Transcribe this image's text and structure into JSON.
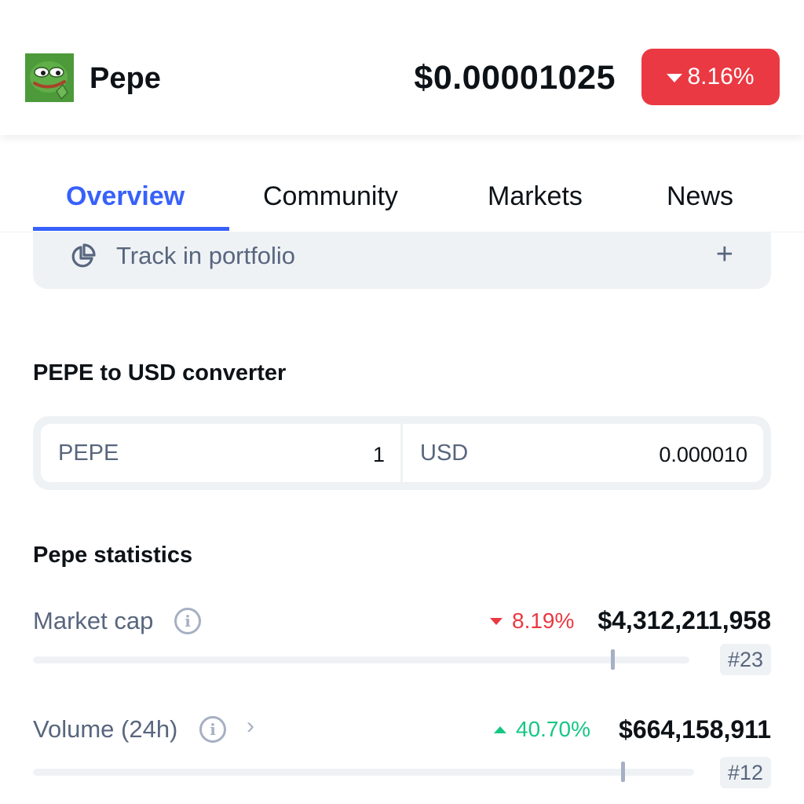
{
  "header": {
    "coin_name": "Pepe",
    "price": "$0.00001025",
    "change": "8.16%",
    "change_direction": "down",
    "change_color": "#ea3943",
    "logo_icon": "pepe-frog-logo"
  },
  "tabs": [
    {
      "label": "Overview",
      "active": true
    },
    {
      "label": "Community",
      "active": false
    },
    {
      "label": "Markets",
      "active": false
    },
    {
      "label": "News",
      "active": false
    }
  ],
  "portfolio": {
    "label": "Track in portfolio",
    "icon": "pie-chart-icon",
    "action_icon": "plus-icon",
    "plus": "+"
  },
  "converter": {
    "title": "PEPE to USD converter",
    "from_symbol": "PEPE",
    "from_value": "1",
    "to_symbol": "USD",
    "to_value": "0.000010"
  },
  "statistics": {
    "title": "Pepe statistics",
    "info_glyph": "i",
    "chevron_glyph": "›",
    "rows": [
      {
        "label": "Market cap",
        "change": "8.19%",
        "change_direction": "down",
        "value": "$4,312,211,958",
        "rank": "#23",
        "bar_position": 0.88
      },
      {
        "label": "Volume (24h)",
        "change": "40.70%",
        "change_direction": "up",
        "value": "$664,158,911",
        "rank": "#12",
        "bar_position": 0.89
      }
    ]
  },
  "colors": {
    "accent": "#3861fb",
    "negative": "#ea3943",
    "positive": "#16c784",
    "muted": "#58667e"
  }
}
